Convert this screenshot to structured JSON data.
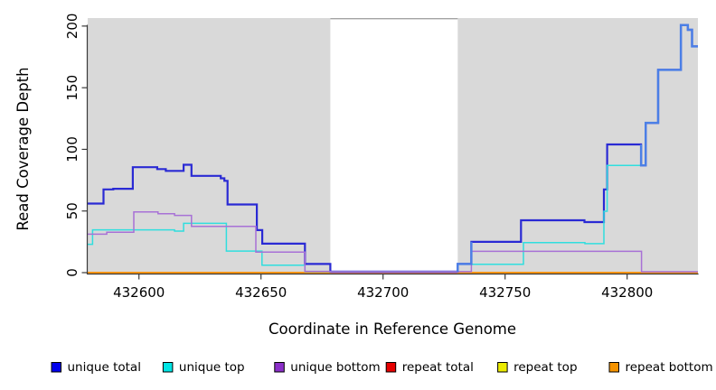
{
  "axes": {
    "y_title": "Read Coverage Depth",
    "x_title": "Coordinate in Reference Genome",
    "y_ticks": [
      0,
      50,
      100,
      150,
      200
    ],
    "x_ticks": [
      432600,
      432650,
      432700,
      432750,
      432800
    ]
  },
  "legend": {
    "items": [
      {
        "label": "unique total",
        "color": "#0000ee"
      },
      {
        "label": "unique top",
        "color": "#00e5e5"
      },
      {
        "label": "unique bottom",
        "color": "#8b2fc9"
      },
      {
        "label": "repeat total",
        "color": "#e60000"
      },
      {
        "label": "repeat top",
        "color": "#ebeb00"
      },
      {
        "label": "repeat bottom",
        "color": "#f59300"
      }
    ]
  },
  "chart_data": {
    "type": "line",
    "subtype": "step-after",
    "title": "",
    "xlabel": "Coordinate in Reference Genome",
    "ylabel": "Read Coverage Depth",
    "x_range": [
      432579,
      432829
    ],
    "y_range": [
      0,
      206.5
    ],
    "grid": false,
    "legend_position": "bottom",
    "background_color": "#ffffff",
    "covered_region_color": "#d9d9d9",
    "covered_regions": [
      [
        432579,
        432678.4
      ],
      [
        432730.6,
        432829
      ]
    ],
    "uncovered_gap": [
      432678.4,
      432730.6
    ],
    "overlap_color": "#4b7fe6",
    "series": [
      {
        "name": "repeat total",
        "color": "#d94f4f",
        "width": 1.5,
        "segments": [
          {
            "steps": [
              [
                432579,
                0
              ]
            ],
            "end": 432829
          }
        ]
      },
      {
        "name": "repeat top",
        "color": "#ebeb30",
        "width": 1.5,
        "segments": [
          {
            "steps": [
              [
                432579,
                0
              ]
            ],
            "end": 432678.4
          },
          {
            "steps": [
              [
                432730.6,
                0
              ]
            ],
            "end": 432829
          }
        ]
      },
      {
        "name": "repeat bottom",
        "color": "#ff9712",
        "width": 2,
        "segments": [
          {
            "steps": [
              [
                432579,
                0
              ]
            ],
            "end": 432678.4
          },
          {
            "steps": [
              [
                432730.6,
                0
              ]
            ],
            "end": 432829
          }
        ]
      },
      {
        "name": "unique total",
        "color": "#2a2ad4",
        "width": 2.2,
        "segments": [
          {
            "steps": [
              [
                432579,
                56
              ],
              [
                432585.5,
                67.5
              ],
              [
                432589.5,
                68
              ],
              [
                432597.5,
                85.5
              ],
              [
                432607.5,
                84
              ],
              [
                432611,
                82.5
              ],
              [
                432618.3,
                87.5
              ],
              [
                432621.5,
                78.5
              ],
              [
                432633.5,
                76.5
              ],
              [
                432635,
                74.5
              ],
              [
                432636.3,
                55.3
              ],
              [
                432648.3,
                34.5
              ],
              [
                432650.5,
                23.5
              ],
              [
                432668,
                7
              ],
              [
                432678.4,
                0.8
              ],
              [
                432730.6,
                7
              ],
              [
                432736.2,
                25
              ],
              [
                432756.5,
                42.5
              ],
              [
                432782.5,
                41
              ],
              [
                432790.5,
                67.5
              ],
              [
                432791.8,
                104
              ],
              [
                432805.7,
                87
              ],
              [
                432807.6,
                121.5
              ],
              [
                432812.7,
                164.5
              ],
              [
                432822,
                200.8
              ],
              [
                432824.9,
                197
              ],
              [
                432826.6,
                183.5
              ]
            ],
            "end": 432829
          }
        ]
      },
      {
        "name": "unique top",
        "color": "#30dede",
        "width": 1.5,
        "segments": [
          {
            "steps": [
              [
                432579,
                23
              ],
              [
                432581,
                34.7
              ],
              [
                432614.6,
                33.7
              ],
              [
                432618.3,
                40
              ],
              [
                432635.8,
                17.5
              ],
              [
                432650.4,
                6
              ],
              [
                432668,
                0.8
              ],
              [
                432730.6,
                6.8
              ],
              [
                432757.5,
                24.4
              ],
              [
                432782.7,
                23.5
              ],
              [
                432790.5,
                49.8
              ],
              [
                432791.8,
                87
              ],
              [
                432807.6,
                121.5
              ],
              [
                432812.7,
                164.5
              ],
              [
                432822,
                200.8
              ],
              [
                432824.9,
                197
              ],
              [
                432826.6,
                183.5
              ]
            ],
            "end": 432829
          }
        ]
      },
      {
        "name": "unique bottom",
        "color": "#a871d6",
        "width": 1.5,
        "segments": [
          {
            "steps": [
              [
                432579,
                31.2
              ],
              [
                432586.8,
                32.7
              ],
              [
                432597.9,
                49.3
              ],
              [
                432607.8,
                47.8
              ],
              [
                432614.6,
                46.4
              ],
              [
                432621.5,
                37.5
              ],
              [
                432647.9,
                16.6
              ],
              [
                432668,
                1
              ],
              [
                432678.4,
                0.8
              ],
              [
                432736.2,
                17.3
              ],
              [
                432805.9,
                0.7
              ]
            ],
            "end": 432829
          }
        ]
      }
    ]
  }
}
